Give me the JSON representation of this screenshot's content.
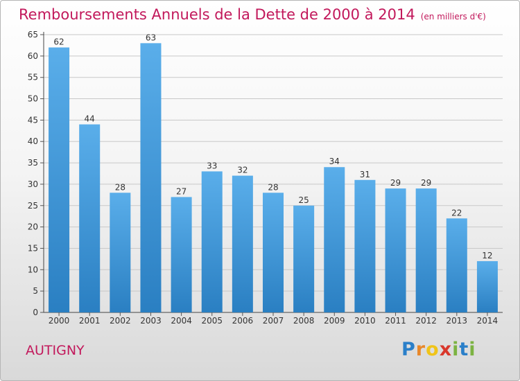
{
  "header": {
    "title": "Remboursements Annuels de la Dette de 2000 à 2014",
    "unit": "(en milliers d'€)"
  },
  "footer": {
    "town": "AUTIGNY",
    "logo": [
      "P",
      "r",
      "o",
      "x",
      "i",
      "t",
      "i"
    ]
  },
  "colors": {
    "title": "#c2185b",
    "bar_top": "#5aaeea",
    "bar_bottom": "#2a7fc2",
    "grid": "#c8c8c8"
  },
  "chart_data": {
    "type": "bar",
    "title": "Remboursements Annuels de la Dette de 2000 à 2014",
    "xlabel": "",
    "ylabel": "",
    "ylim": [
      0,
      65
    ],
    "ytick_step": 5,
    "grid": true,
    "categories": [
      "2000",
      "2001",
      "2002",
      "2003",
      "2004",
      "2005",
      "2006",
      "2007",
      "2008",
      "2009",
      "2010",
      "2011",
      "2012",
      "2013",
      "2014"
    ],
    "values": [
      62,
      44,
      28,
      63,
      27,
      33,
      32,
      28,
      25,
      34,
      31,
      29,
      29,
      22,
      12
    ]
  }
}
